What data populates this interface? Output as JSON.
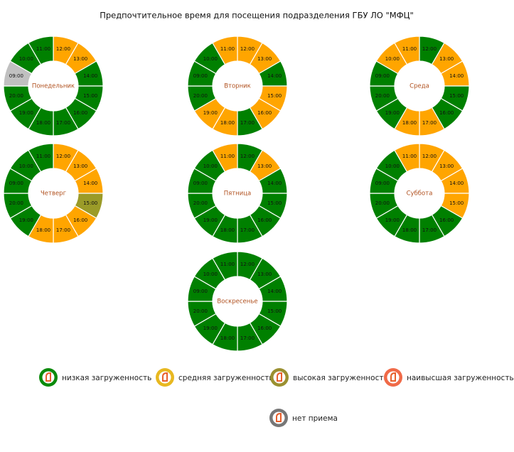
{
  "title": "Предпочтительное время для посещения подразделения ГБУ ЛО \"МФЦ\"",
  "days": [
    {
      "name": "Понедельник",
      "slots": [
        {
          "time": "12:00",
          "color": "#ffa500"
        },
        {
          "time": "13:00",
          "color": "#ffa500"
        },
        {
          "time": "14:00",
          "color": "#008000"
        },
        {
          "time": "15:00",
          "color": "#008000"
        },
        {
          "time": "16:00",
          "color": "#008000"
        },
        {
          "time": "17:00",
          "color": "#008000"
        },
        {
          "time": "18:00",
          "color": "#008000"
        },
        {
          "time": "19:00",
          "color": "#008000"
        },
        {
          "time": "20:00",
          "color": "#008000"
        },
        {
          "time": "09:00",
          "color": "#c0c0c0"
        },
        {
          "time": "10:00",
          "color": "#008000"
        },
        {
          "time": "11:00",
          "color": "#008000"
        }
      ]
    },
    {
      "name": "Вторник",
      "slots": [
        {
          "time": "12:00",
          "color": "#ffa500"
        },
        {
          "time": "13:00",
          "color": "#ffa500"
        },
        {
          "time": "14:00",
          "color": "#008000"
        },
        {
          "time": "15:00",
          "color": "#ffa500"
        },
        {
          "time": "16:00",
          "color": "#ffa500"
        },
        {
          "time": "17:00",
          "color": "#008000"
        },
        {
          "time": "18:00",
          "color": "#ffa500"
        },
        {
          "time": "19:00",
          "color": "#ffa500"
        },
        {
          "time": "20:00",
          "color": "#008000"
        },
        {
          "time": "09:00",
          "color": "#008000"
        },
        {
          "time": "10:00",
          "color": "#008000"
        },
        {
          "time": "11:00",
          "color": "#ffa500"
        }
      ]
    },
    {
      "name": "Среда",
      "slots": [
        {
          "time": "12:00",
          "color": "#008000"
        },
        {
          "time": "13:00",
          "color": "#ffa500"
        },
        {
          "time": "14:00",
          "color": "#ffa500"
        },
        {
          "time": "15:00",
          "color": "#008000"
        },
        {
          "time": "16:00",
          "color": "#008000"
        },
        {
          "time": "17:00",
          "color": "#ffa500"
        },
        {
          "time": "18:00",
          "color": "#ffa500"
        },
        {
          "time": "19:00",
          "color": "#008000"
        },
        {
          "time": "20:00",
          "color": "#008000"
        },
        {
          "time": "09:00",
          "color": "#008000"
        },
        {
          "time": "10:00",
          "color": "#ffa500"
        },
        {
          "time": "11:00",
          "color": "#ffa500"
        }
      ]
    },
    {
      "name": "Четверг",
      "slots": [
        {
          "time": "12:00",
          "color": "#ffa500"
        },
        {
          "time": "13:00",
          "color": "#ffa500"
        },
        {
          "time": "14:00",
          "color": "#ffa500"
        },
        {
          "time": "15:00",
          "color": "#9b9b28"
        },
        {
          "time": "16:00",
          "color": "#ffa500"
        },
        {
          "time": "17:00",
          "color": "#ffa500"
        },
        {
          "time": "18:00",
          "color": "#ffa500"
        },
        {
          "time": "19:00",
          "color": "#008000"
        },
        {
          "time": "20:00",
          "color": "#008000"
        },
        {
          "time": "09:00",
          "color": "#008000"
        },
        {
          "time": "10:00",
          "color": "#008000"
        },
        {
          "time": "11:00",
          "color": "#008000"
        }
      ]
    },
    {
      "name": "Пятница",
      "slots": [
        {
          "time": "12:00",
          "color": "#008000"
        },
        {
          "time": "13:00",
          "color": "#ffa500"
        },
        {
          "time": "14:00",
          "color": "#008000"
        },
        {
          "time": "15:00",
          "color": "#008000"
        },
        {
          "time": "16:00",
          "color": "#008000"
        },
        {
          "time": "17:00",
          "color": "#008000"
        },
        {
          "time": "18:00",
          "color": "#008000"
        },
        {
          "time": "19:00",
          "color": "#008000"
        },
        {
          "time": "20:00",
          "color": "#008000"
        },
        {
          "time": "09:00",
          "color": "#008000"
        },
        {
          "time": "10:00",
          "color": "#008000"
        },
        {
          "time": "11:00",
          "color": "#ffa500"
        }
      ]
    },
    {
      "name": "Суббота",
      "slots": [
        {
          "time": "12:00",
          "color": "#ffa500"
        },
        {
          "time": "13:00",
          "color": "#ffa500"
        },
        {
          "time": "14:00",
          "color": "#ffa500"
        },
        {
          "time": "15:00",
          "color": "#ffa500"
        },
        {
          "time": "16:00",
          "color": "#008000"
        },
        {
          "time": "17:00",
          "color": "#008000"
        },
        {
          "time": "18:00",
          "color": "#008000"
        },
        {
          "time": "19:00",
          "color": "#008000"
        },
        {
          "time": "20:00",
          "color": "#008000"
        },
        {
          "time": "09:00",
          "color": "#008000"
        },
        {
          "time": "10:00",
          "color": "#008000"
        },
        {
          "time": "11:00",
          "color": "#ffa500"
        }
      ]
    },
    {
      "name": "Воскресенье",
      "slots": [
        {
          "time": "12:00",
          "color": "#008000"
        },
        {
          "time": "13:00",
          "color": "#008000"
        },
        {
          "time": "14:00",
          "color": "#008000"
        },
        {
          "time": "15:00",
          "color": "#008000"
        },
        {
          "time": "16:00",
          "color": "#008000"
        },
        {
          "time": "17:00",
          "color": "#008000"
        },
        {
          "time": "18:00",
          "color": "#008000"
        },
        {
          "time": "19:00",
          "color": "#008000"
        },
        {
          "time": "20:00",
          "color": "#008000"
        },
        {
          "time": "09:00",
          "color": "#008000"
        },
        {
          "time": "10:00",
          "color": "#008000"
        },
        {
          "time": "11:00",
          "color": "#008000"
        }
      ]
    }
  ],
  "legend": [
    {
      "label": "низкая загруженность",
      "color": "#0b8a0b"
    },
    {
      "label": "средняя загруженность",
      "color": "#e8b820"
    },
    {
      "label": "высокая загруженность",
      "color": "#9a9030"
    },
    {
      "label": "наивысшая загруженность",
      "color": "#f06a48"
    },
    {
      "label": "нет приема",
      "color": "#777777"
    }
  ]
}
